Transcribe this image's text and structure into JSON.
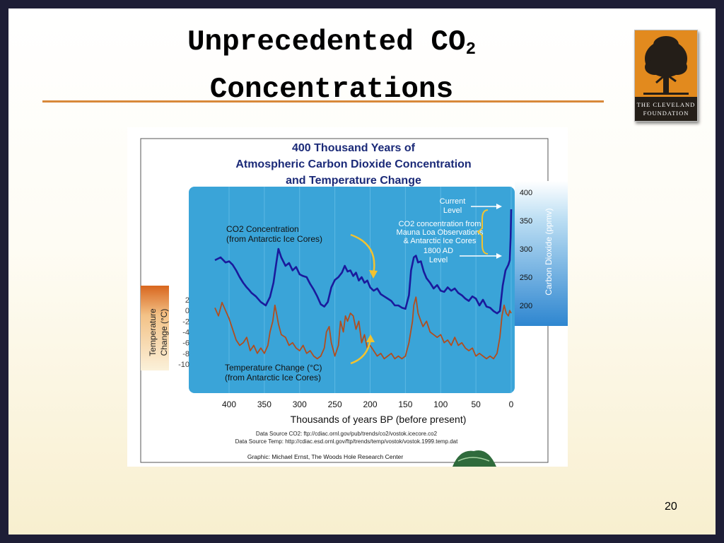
{
  "slide": {
    "title_line1": "Unprecedented CO",
    "title_sub": "2",
    "title_line2": "Concentrations",
    "page_number": "20",
    "logo": {
      "line1": "THE CLEVELAND",
      "line2": "FOUNDATION"
    }
  },
  "colors": {
    "co2_line": "#1a1a9c",
    "temp_line": "#b14d1e",
    "panel_blue": "#3aa4d8",
    "heading_blue": "#1b2a78",
    "rule": "#d8893a",
    "logo_orange": "#e28a1e"
  },
  "chart_data": {
    "type": "line",
    "title": "400 Thousand Years of Atmospheric Carbon Dioxide Concentration and Temperature Change",
    "title_lines": [
      "400 Thousand Years of",
      "Atmospheric Carbon Dioxide Concentration",
      "and Temperature Change"
    ],
    "xlabel": "Thousands of years BP (before present)",
    "ylabel_left_lines": [
      "Temperature",
      "Change (°C)"
    ],
    "ylabel_right": "Carbon Dioxide (ppmv)",
    "xlim": [
      420,
      0
    ],
    "ylim_left": [
      -11,
      2.5
    ],
    "ylim_right": [
      180,
      400
    ],
    "x_ticks": [
      400,
      350,
      300,
      250,
      200,
      150,
      100,
      50,
      0
    ],
    "y_ticks_left": [
      2,
      0,
      -2,
      -4,
      -6,
      -8,
      -10
    ],
    "y_ticks_right": [
      400,
      350,
      300,
      250,
      200
    ],
    "series": [
      {
        "name": "CO2 Concentration (from Antarctic Ice Cores)",
        "axis": "right",
        "x": [
          420,
          412,
          405,
          400,
          395,
          390,
          385,
          380,
          375,
          372,
          368,
          362,
          355,
          348,
          342,
          337,
          333,
          330,
          326,
          320,
          315,
          310,
          305,
          300,
          295,
          290,
          285,
          280,
          275,
          270,
          265,
          260,
          255,
          250,
          245,
          240,
          236,
          232,
          228,
          224,
          220,
          216,
          212,
          208,
          204,
          200,
          195,
          190,
          185,
          180,
          175,
          170,
          165,
          160,
          155,
          150,
          145,
          142,
          138,
          135,
          132,
          128,
          124,
          120,
          115,
          110,
          105,
          100,
          95,
          90,
          85,
          80,
          75,
          70,
          65,
          60,
          55,
          50,
          45,
          40,
          35,
          30,
          25,
          20,
          16,
          12,
          8,
          4,
          2,
          0.8,
          0.3,
          0
        ],
        "values": [
          280,
          285,
          276,
          278,
          272,
          262,
          250,
          240,
          232,
          228,
          222,
          216,
          206,
          200,
          215,
          240,
          275,
          300,
          285,
          270,
          275,
          262,
          268,
          255,
          252,
          250,
          238,
          228,
          216,
          202,
          198,
          206,
          232,
          245,
          250,
          258,
          270,
          260,
          262,
          252,
          258,
          244,
          250,
          240,
          244,
          232,
          226,
          230,
          220,
          216,
          212,
          208,
          200,
          200,
          196,
          194,
          218,
          262,
          285,
          288,
          276,
          278,
          260,
          248,
          240,
          230,
          236,
          226,
          224,
          232,
          226,
          230,
          222,
          218,
          212,
          208,
          216,
          212,
          200,
          210,
          198,
          196,
          190,
          186,
          190,
          235,
          262,
          272,
          280,
          320,
          350,
          370
        ]
      },
      {
        "name": "Temperature Change (°C) (from Antarctic Ice Cores)",
        "axis": "left",
        "x": [
          420,
          415,
          410,
          405,
          400,
          395,
          390,
          385,
          380,
          375,
          370,
          365,
          360,
          355,
          350,
          345,
          342,
          338,
          335,
          332,
          330,
          326,
          320,
          315,
          310,
          305,
          300,
          295,
          290,
          285,
          280,
          275,
          270,
          265,
          262,
          258,
          255,
          250,
          245,
          242,
          238,
          235,
          232,
          228,
          224,
          220,
          216,
          212,
          208,
          204,
          200,
          195,
          190,
          185,
          180,
          175,
          170,
          165,
          160,
          155,
          150,
          145,
          140,
          138,
          135,
          132,
          128,
          125,
          120,
          115,
          110,
          105,
          100,
          95,
          90,
          85,
          80,
          75,
          70,
          65,
          60,
          55,
          50,
          45,
          40,
          35,
          30,
          25,
          20,
          16,
          13,
          10,
          7,
          4,
          2,
          0
        ],
        "values": [
          0.5,
          -1,
          1.5,
          0,
          -1.5,
          -3.5,
          -5.5,
          -6.5,
          -6,
          -5,
          -7.5,
          -6.5,
          -8,
          -7,
          -8,
          -6.5,
          -4,
          -2,
          1,
          -1,
          -2.5,
          -4.5,
          -5,
          -6.5,
          -6,
          -7,
          -7.5,
          -6.5,
          -8,
          -7.5,
          -8.5,
          -9,
          -8.5,
          -7,
          -4,
          -3,
          -6,
          -8.5,
          -6.5,
          -2,
          -4,
          -1,
          -2,
          -0.5,
          -1,
          -3.5,
          -2,
          -6,
          -4.5,
          -7,
          -6.5,
          -7.5,
          -8.5,
          -8,
          -9,
          -8.5,
          -8,
          -9,
          -8.5,
          -9,
          -8.5,
          -6,
          -2,
          1,
          2.5,
          -0.5,
          -2,
          -3,
          -2,
          -4,
          -4.5,
          -5,
          -4.5,
          -6,
          -5.5,
          -6.5,
          -5,
          -6.5,
          -6,
          -7,
          -7.5,
          -7,
          -8.5,
          -8,
          -8.5,
          -9,
          -8.5,
          -9,
          -8,
          -5,
          -1,
          1,
          -0.5,
          -1,
          0,
          -0.5
        ]
      }
    ],
    "annotations": {
      "co2_label_lines": [
        "CO2 Concentration",
        "(from Antarctic Ice Cores)"
      ],
      "temp_label_lines": [
        "Temperature Change (°C)",
        "(from Antarctic Ice Cores)"
      ],
      "current_level": [
        "Current",
        "Level"
      ],
      "mauna_loa": [
        "CO2 concentration from",
        "Mauna Loa Observations",
        "& Antarctic Ice Cores"
      ],
      "ad_1800": [
        "1800 AD",
        "Level"
      ]
    },
    "sources": [
      "Data Source CO2: ftp://cdiac.ornl.gov/pub/trends/co2/vostok.icecore.co2",
      "Data Source Temp: http://cdiac.esd.ornl.gov/ftp/trends/temp/vostok/vostok.1999.temp.dat"
    ],
    "credit": "Graphic: Michael Ernst, The Woods Hole Research Center",
    "grid": true,
    "legend": "none"
  }
}
